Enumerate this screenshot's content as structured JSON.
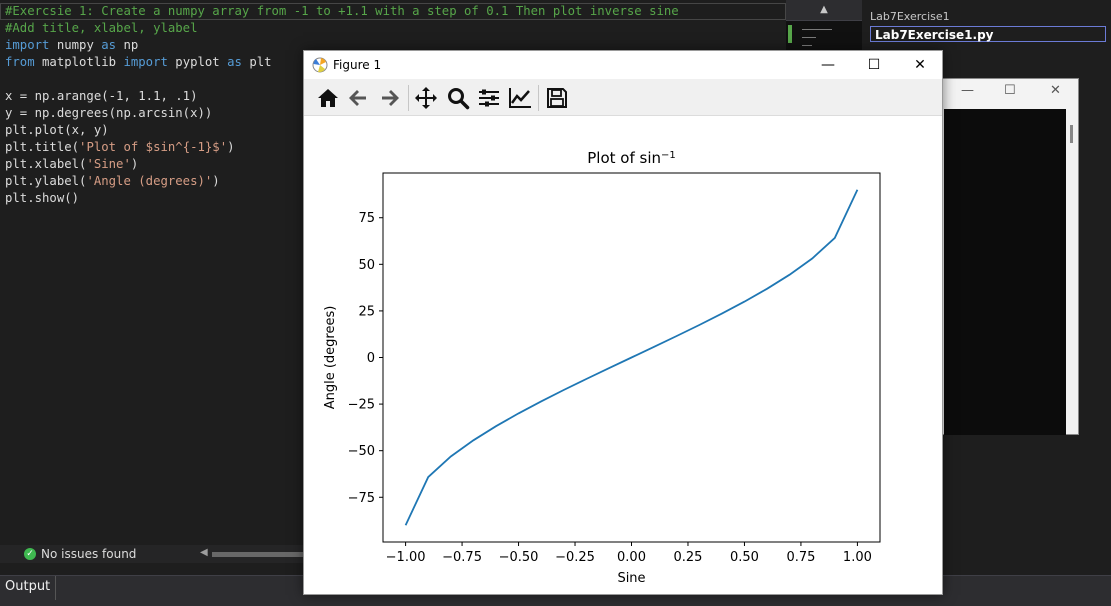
{
  "editor": {
    "lines": [
      [
        {
          "t": "#Exercsie 1: Create a numpy array from -1 to +1.1 with a step of 0.1 Then plot inverse sine",
          "c": "c-comment"
        }
      ],
      [
        {
          "t": "#Add title, xlabel, ylabel",
          "c": "c-comment"
        }
      ],
      [
        {
          "t": "import",
          "c": "c-kw"
        },
        {
          "t": " numpy ",
          "c": "c-plain"
        },
        {
          "t": "as",
          "c": "c-kw"
        },
        {
          "t": " np",
          "c": "c-plain"
        }
      ],
      [
        {
          "t": "from",
          "c": "c-kw"
        },
        {
          "t": " matplotlib ",
          "c": "c-plain"
        },
        {
          "t": "import",
          "c": "c-kw"
        },
        {
          "t": " pyplot ",
          "c": "c-plain"
        },
        {
          "t": "as",
          "c": "c-kw"
        },
        {
          "t": " plt",
          "c": "c-plain"
        }
      ],
      [
        {
          "t": "",
          "c": "c-plain"
        }
      ],
      [
        {
          "t": "x = np.arange(-1, 1.1, .1)",
          "c": "c-plain"
        }
      ],
      [
        {
          "t": "y = np.degrees(np.arcsin(x))",
          "c": "c-plain"
        }
      ],
      [
        {
          "t": "plt.plot(x, y)",
          "c": "c-plain"
        }
      ],
      [
        {
          "t": "plt.title(",
          "c": "c-plain"
        },
        {
          "t": "'Plot of $sin^{-1}$'",
          "c": "c-str"
        },
        {
          "t": ")",
          "c": "c-plain"
        }
      ],
      [
        {
          "t": "plt.xlabel(",
          "c": "c-plain"
        },
        {
          "t": "'Sine'",
          "c": "c-str"
        },
        {
          "t": ")",
          "c": "c-plain"
        }
      ],
      [
        {
          "t": "plt.ylabel(",
          "c": "c-plain"
        },
        {
          "t": "'Angle (degrees)'",
          "c": "c-str"
        },
        {
          "t": ")",
          "c": "c-plain"
        }
      ],
      [
        {
          "t": "plt.show()",
          "c": "c-plain"
        }
      ]
    ]
  },
  "status": {
    "issues_text": "No issues found"
  },
  "output_tab": {
    "label": "Output"
  },
  "solution_tree": {
    "project": "Lab7Exercise1",
    "file": "Lab7Exercise1.py"
  },
  "figure_window": {
    "title": "Figure 1"
  },
  "colors": {
    "line": "#1f77b4",
    "comment": "#57a64a",
    "keyword": "#569cd6",
    "string": "#d69d85"
  },
  "chart_data": {
    "type": "line",
    "title": "Plot of sin",
    "title_superscript": "−1",
    "xlabel": "Sine",
    "ylabel": "Angle (degrees)",
    "xlim": [
      -1.1,
      1.1
    ],
    "ylim": [
      -99,
      99
    ],
    "x_ticks": [
      -1.0,
      -0.75,
      -0.5,
      -0.25,
      0.0,
      0.25,
      0.5,
      0.75,
      1.0
    ],
    "x_tick_labels": [
      "−1.00",
      "−0.75",
      "−0.50",
      "−0.25",
      "0.00",
      "0.25",
      "0.50",
      "0.75",
      "1.00"
    ],
    "y_ticks": [
      -75,
      -50,
      -25,
      0,
      25,
      50,
      75
    ],
    "y_tick_labels": [
      "−75",
      "−50",
      "−25",
      "0",
      "25",
      "50",
      "75"
    ],
    "grid": false,
    "series": [
      {
        "x": [
          -1.0,
          -0.9,
          -0.8,
          -0.7,
          -0.6,
          -0.5,
          -0.4,
          -0.3,
          -0.2,
          -0.1,
          0.0,
          0.1,
          0.2,
          0.3,
          0.4,
          0.5,
          0.6,
          0.7,
          0.8,
          0.9,
          1.0
        ],
        "y": [
          -90.0,
          -64.16,
          -53.13,
          -44.43,
          -36.87,
          -30.0,
          -23.58,
          -17.46,
          -11.54,
          -5.74,
          0.0,
          5.74,
          11.54,
          17.46,
          23.58,
          30.0,
          36.87,
          44.43,
          53.13,
          64.16,
          90.0
        ]
      }
    ]
  }
}
